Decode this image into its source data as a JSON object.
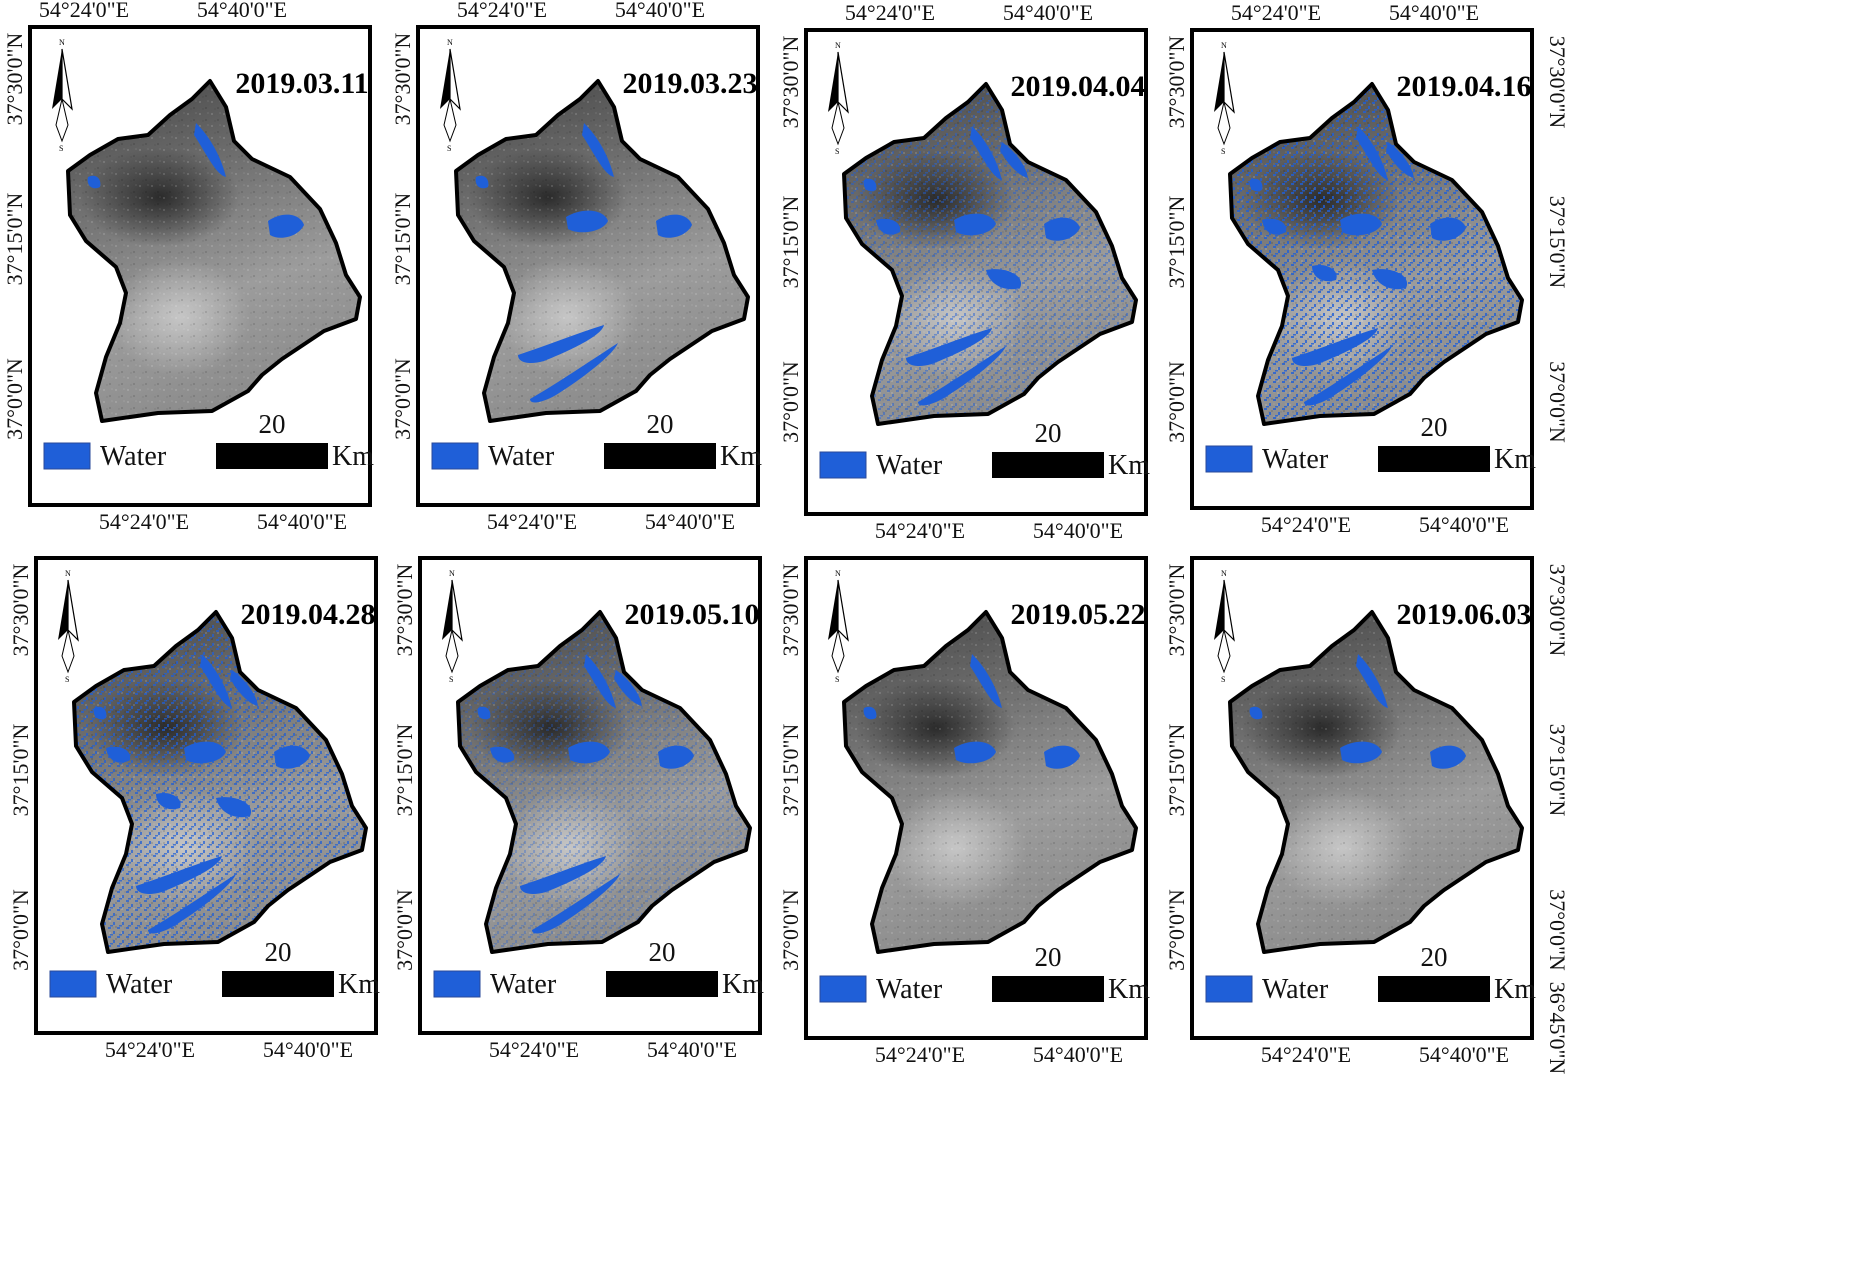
{
  "legend": {
    "label": "Water",
    "color": "#1f5fd8"
  },
  "scale_bar": {
    "value": "20",
    "unit": "Km"
  },
  "north_arrow": {
    "north": "N",
    "south": "S",
    "icon": "north-arrow-icon"
  },
  "coords": {
    "top_lon": [
      "54°24'0\"E",
      "54°40'0\"E"
    ],
    "bottom_lon": [
      "54°24'0\"E",
      "54°40'0\"E"
    ],
    "lat": [
      "37°30'0\"N",
      "37°15'0\"N",
      "37°0'0\"N"
    ],
    "lat_extra": "36°45'0\"N"
  },
  "colors": {
    "frame": "#000000",
    "land_dark": "#3d3d3d",
    "land_light": "#9a9a9a",
    "water": "#1f5fd8"
  },
  "panels": [
    {
      "date": "2019.03.11",
      "water_level": 0.15
    },
    {
      "date": "2019.03.23",
      "water_level": 0.35
    },
    {
      "date": "2019.04.04",
      "water_level": 0.65
    },
    {
      "date": "2019.04.16",
      "water_level": 0.85
    },
    {
      "date": "2019.04.28",
      "water_level": 0.8
    },
    {
      "date": "2019.05.10",
      "water_level": 0.55
    },
    {
      "date": "2019.05.22",
      "water_level": 0.25
    },
    {
      "date": "2019.06.03",
      "water_level": 0.2
    }
  ]
}
